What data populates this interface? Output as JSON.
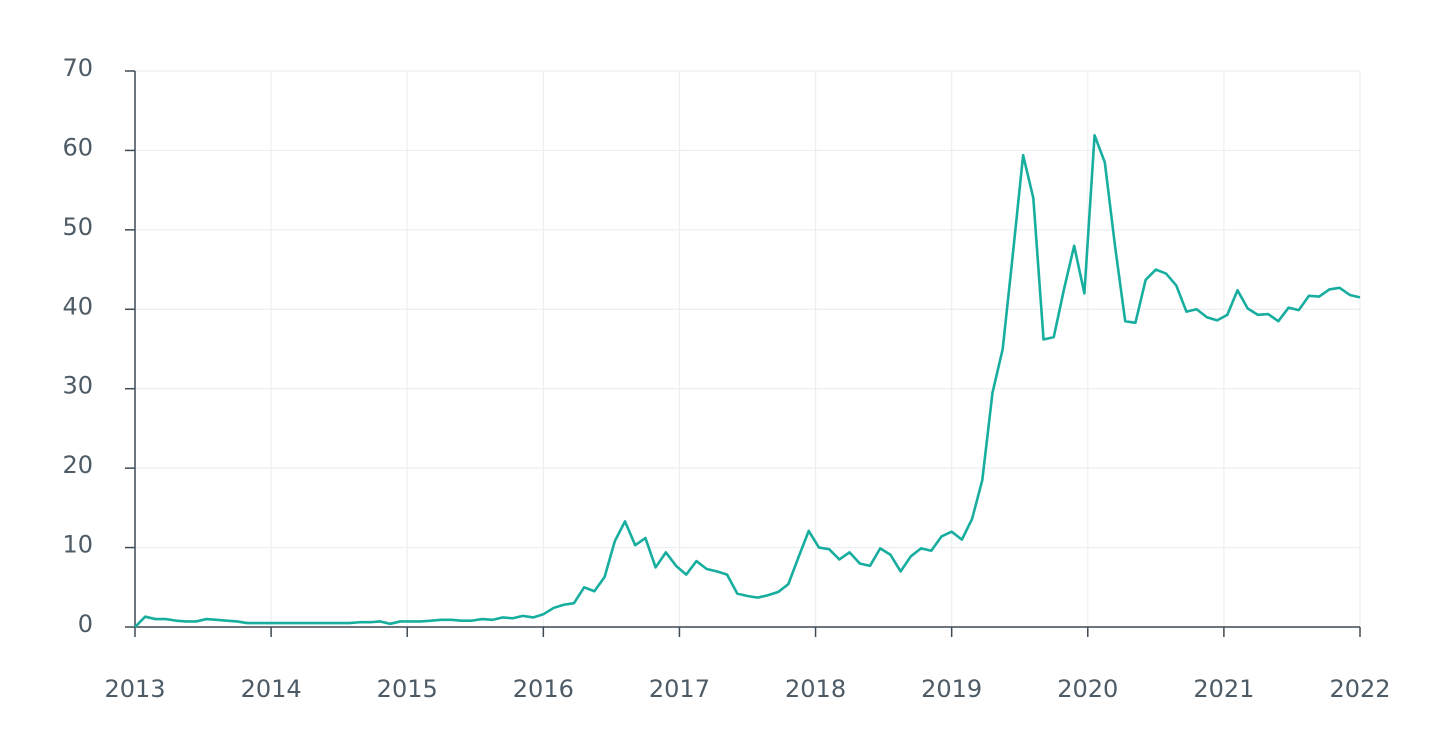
{
  "chart_data": {
    "type": "line",
    "x": [
      2013,
      2013.075,
      2013.15,
      2013.225,
      2013.3,
      2013.375,
      2013.45,
      2013.525,
      2013.6,
      2013.675,
      2013.75,
      2013.825,
      2013.9,
      2013.975,
      2014.05,
      2014.125,
      2014.2,
      2014.275,
      2014.35,
      2014.425,
      2014.5,
      2014.575,
      2014.65,
      2014.725,
      2014.8,
      2014.875,
      2014.95,
      2015.025,
      2015.1,
      2015.175,
      2015.25,
      2015.325,
      2015.4,
      2015.475,
      2015.55,
      2015.625,
      2015.7,
      2015.775,
      2015.85,
      2015.925,
      2016,
      2016.075,
      2016.15,
      2016.225,
      2016.3,
      2016.375,
      2016.45,
      2016.525,
      2016.6,
      2016.675,
      2016.75,
      2016.825,
      2016.9,
      2016.975,
      2017.05,
      2017.125,
      2017.2,
      2017.275,
      2017.35,
      2017.425,
      2017.5,
      2017.575,
      2017.65,
      2017.725,
      2017.8,
      2017.875,
      2017.95,
      2018.025,
      2018.1,
      2018.175,
      2018.25,
      2018.325,
      2018.4,
      2018.475,
      2018.55,
      2018.625,
      2018.7,
      2018.775,
      2018.85,
      2018.925,
      2019,
      2019.075,
      2019.15,
      2019.225,
      2019.3,
      2019.375,
      2019.45,
      2019.525,
      2019.6,
      2019.675,
      2019.75,
      2019.825,
      2019.9,
      2019.975,
      2020.05,
      2020.125,
      2020.2,
      2020.275,
      2020.35,
      2020.425,
      2020.5,
      2020.575,
      2020.65,
      2020.725,
      2020.8,
      2020.875,
      2020.95,
      2021.025,
      2021.1,
      2021.175,
      2021.25,
      2021.325,
      2021.4,
      2021.475,
      2021.55,
      2021.625,
      2021.7,
      2021.775,
      2021.85,
      2021.925,
      2022
    ],
    "series": [
      {
        "color": "#17ae9f",
        "values": [
          0,
          1.3,
          1.0,
          1.0,
          0.8,
          0.7,
          0.7,
          1.0,
          0.9,
          0.8,
          0.7,
          0.5,
          0.5,
          0.5,
          0.5,
          0.5,
          0.5,
          0.5,
          0.5,
          0.5,
          0.5,
          0.5,
          0.6,
          0.6,
          0.7,
          0.4,
          0.7,
          0.7,
          0.7,
          0.8,
          0.9,
          0.9,
          0.8,
          0.8,
          1.0,
          0.9,
          1.2,
          1.1,
          1.4,
          1.2,
          1.6,
          2.4,
          2.8,
          3.0,
          5.0,
          4.5,
          6.3,
          10.8,
          13.3,
          10.3,
          11.2,
          7.5,
          9.4,
          7.7,
          6.6,
          8.3,
          7.3,
          7.0,
          6.6,
          4.2,
          3.9,
          3.7,
          4.0,
          4.4,
          5.4,
          8.8,
          12.1,
          10.0,
          9.8,
          8.5,
          9.4,
          8.0,
          7.7,
          9.9,
          9.1,
          7.0,
          8.9,
          9.9,
          9.6,
          11.4,
          12.0,
          11.0,
          13.6,
          18.5,
          29.5,
          35.0,
          47,
          59.4,
          54.0,
          36.2,
          36.5,
          42.5,
          48.0,
          42.0,
          61.9,
          58.5,
          48,
          38.5,
          38.3,
          43.7,
          45.0,
          44.5,
          43.0,
          39.7,
          40.0,
          39.0,
          38.6,
          39.3,
          42.4,
          40.1,
          39.3,
          39.4,
          38.5,
          40.2,
          39.9,
          41.7,
          41.6,
          42.5,
          42.7,
          41.8,
          41.5
        ]
      }
    ],
    "xlim": [
      2013,
      2022
    ],
    "xticks": [
      2013,
      2014,
      2015,
      2016,
      2017,
      2018,
      2019,
      2020,
      2021,
      2022
    ],
    "ylim": [
      0,
      70
    ],
    "yticks": [
      0,
      10,
      20,
      30,
      40,
      50,
      60,
      70
    ],
    "grid": true
  }
}
